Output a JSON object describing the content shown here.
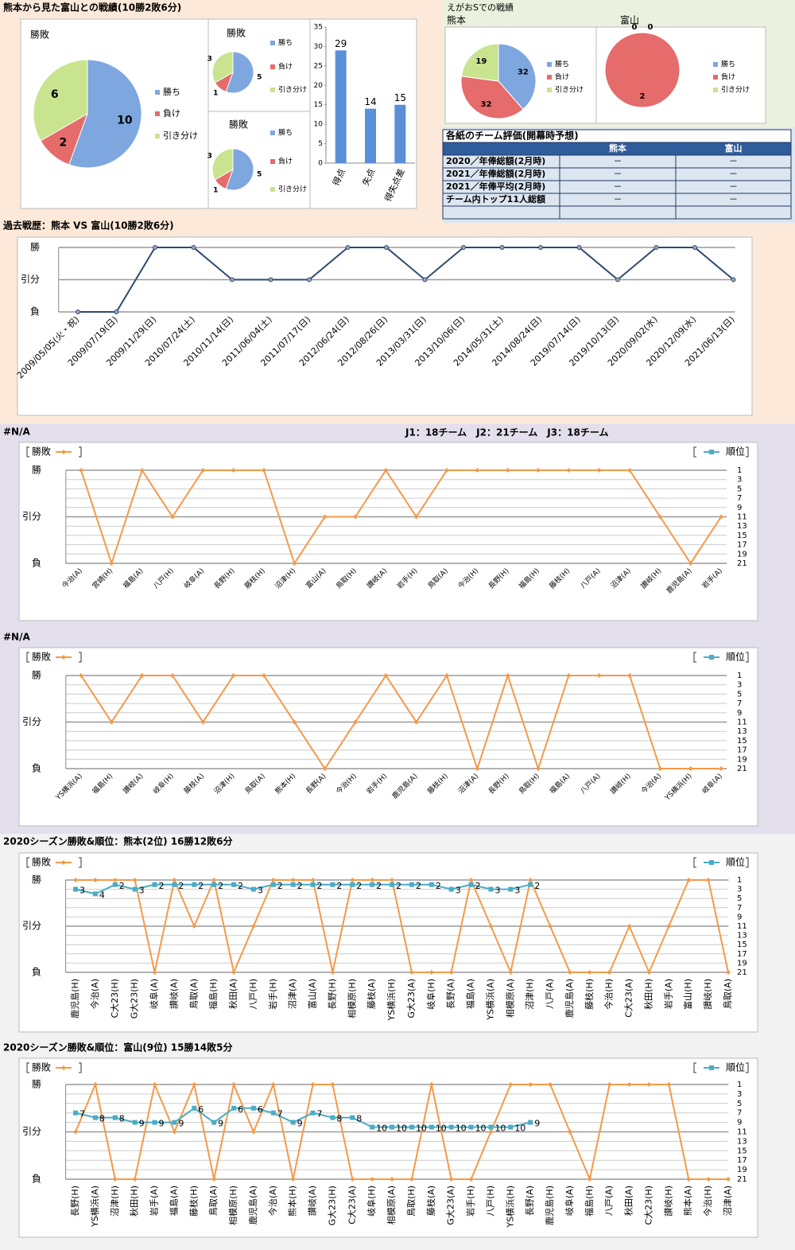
{
  "headings": {
    "top": "熊本から見た富山との戦績(10勝2敗6分)",
    "egao": "えがおSでの戦績",
    "league": "J1：18チーム　J2：21チーム　J3：18チーム"
  },
  "table": {
    "title": "各紙のチーム評価(開幕時予想)",
    "header": [
      "熊本",
      "富山"
    ],
    "rows": [
      [
        "2020／年俸総額(2月時)",
        "－",
        "－"
      ],
      [
        "2021／年俸総額(2月時)",
        "－",
        "－"
      ],
      [
        "2021／年俸平均(2月時)",
        "－",
        "－"
      ],
      [
        "チーム内トップ11人総額",
        "－",
        "－"
      ]
    ]
  },
  "chart_data": [
    {
      "type": "pie",
      "title": "勝敗",
      "categories": [
        "勝ち",
        "負け",
        "引き分け"
      ],
      "values": [
        10,
        2,
        6
      ],
      "colors": [
        "#7ea7e0",
        "#e66b6b",
        "#c9e48f"
      ]
    },
    {
      "type": "pie",
      "title": "勝敗",
      "categories": [
        "勝ち",
        "負け",
        "引き分け"
      ],
      "values": [
        5,
        1,
        3
      ],
      "colors": [
        "#7ea7e0",
        "#e66b6b",
        "#c9e48f"
      ]
    },
    {
      "type": "pie",
      "title": "勝敗",
      "categories": [
        "勝ち",
        "負け",
        "引き分け"
      ],
      "values": [
        5,
        1,
        3
      ],
      "colors": [
        "#7ea7e0",
        "#e66b6b",
        "#c9e48f"
      ]
    },
    {
      "type": "bar",
      "categories": [
        "得点",
        "失点",
        "得失点差"
      ],
      "values": [
        29,
        14,
        15
      ],
      "color": "#5b8fd8",
      "ylim": [
        0,
        35
      ],
      "yticks": [
        0,
        5,
        10,
        15,
        20,
        25,
        30,
        35
      ]
    },
    {
      "type": "pie",
      "title": "熊本",
      "categories": [
        "勝ち",
        "負け",
        "引き分け"
      ],
      "values": [
        32,
        32,
        19
      ],
      "colors": [
        "#7ea7e0",
        "#e66b6b",
        "#c9e48f"
      ]
    },
    {
      "type": "pie",
      "title": "富山",
      "categories": [
        "勝ち",
        "負け",
        "引き分け"
      ],
      "values": [
        0,
        2,
        0
      ],
      "colors": [
        "#7ea7e0",
        "#e66b6b",
        "#c9e48f"
      ]
    },
    {
      "type": "line",
      "title": "過去戦歴：熊本 VS 富山(10勝2敗6分)",
      "categories": [
        "2009/05/05(火・祝)",
        "2009/07/19(日)",
        "2009/11/29(日)",
        "2010/07/24(土)",
        "2010/11/14(日)",
        "2011/06/04(土)",
        "2011/07/17(日)",
        "2012/06/24(日)",
        "2012/08/26(日)",
        "2013/03/31(日)",
        "2013/10/06(日)",
        "2014/05/31(土)",
        "2014/08/24(日)",
        "2019/07/14(日)",
        "2019/10/13(日)",
        "2020/09/02(水)",
        "2020/12/09(水)",
        "2021/06/13(日)"
      ],
      "values": [
        -1,
        -1,
        1,
        1,
        0,
        0,
        0,
        1,
        1,
        0,
        1,
        1,
        1,
        1,
        0,
        1,
        1,
        0
      ],
      "color": "#2e4a6e",
      "ylim": [
        -1,
        1
      ],
      "yticks": [
        {
          "value": 1,
          "label": "勝"
        },
        {
          "value": 0,
          "label": "引分"
        },
        {
          "value": -1,
          "label": "負"
        }
      ]
    },
    {
      "type": "line",
      "title": "#N/A",
      "categories": [
        "今治(A)",
        "宮崎(H)",
        "福島(A)",
        "八戸(H)",
        "岐阜(A)",
        "長野(H)",
        "藤枝(H)",
        "沼津(H)",
        "富山(A)",
        "鳥取(H)",
        "讃岐(A)",
        "岩手(H)",
        "鳥取(A)",
        "今治(H)",
        "長野(H)",
        "福島(H)",
        "藤枝(H)",
        "八戸(A)",
        "沼津(A)",
        "讃岐(H)",
        "鹿児島(A)",
        "岩手(A)"
      ],
      "series": [
        {
          "name": "勝敗",
          "color": "#f39a4a",
          "marker": "diamond",
          "values": [
            1,
            -1,
            1,
            0,
            1,
            1,
            1,
            -1,
            0,
            0,
            1,
            0,
            1,
            1,
            1,
            1,
            1,
            1,
            1,
            0,
            -1,
            0
          ]
        },
        {
          "name": "順位",
          "color": "#4bacc6",
          "marker": "square",
          "axis": "y2",
          "data_labels": true,
          "values": [
            null,
            null,
            null,
            null,
            null,
            null,
            null,
            null,
            null,
            null,
            null,
            null,
            null,
            null,
            null,
            null,
            null,
            null,
            null,
            null,
            null,
            null
          ]
        }
      ],
      "ylim": [
        -1,
        1
      ],
      "yticks": [
        {
          "value": 1,
          "label": "勝"
        },
        {
          "value": 0,
          "label": "引分"
        },
        {
          "value": -1,
          "label": "負"
        }
      ],
      "y2lim": [
        21,
        1
      ],
      "y2ticks": [
        1,
        3,
        5,
        7,
        9,
        11,
        13,
        15,
        17,
        19,
        21
      ]
    },
    {
      "type": "line",
      "title": "#N/A",
      "categories": [
        "YS横浜(A)",
        "福島(H)",
        "讃岐(A)",
        "岐阜(H)",
        "藤枝(A)",
        "沼津(H)",
        "鳥取(A)",
        "熊本(H)",
        "長野(A)",
        "今治(H)",
        "岩手(H)",
        "鹿児島(A)",
        "藤枝(H)",
        "沼津(A)",
        "長野(H)",
        "鳥取(H)",
        "福島(A)",
        "八戸(A)",
        "讃岐(H)",
        "今治(A)",
        "YS横浜(H)",
        "岐阜(A)"
      ],
      "series": [
        {
          "name": "勝敗",
          "color": "#f39a4a",
          "marker": "diamond",
          "values": [
            1,
            0,
            1,
            1,
            0,
            1,
            1,
            0,
            -1,
            0,
            1,
            0,
            1,
            -1,
            1,
            -1,
            1,
            1,
            1,
            -1,
            -1,
            -1
          ]
        },
        {
          "name": "順位",
          "color": "#4bacc6",
          "marker": "square",
          "axis": "y2",
          "data_labels": true,
          "values": [
            null,
            null,
            null,
            null,
            null,
            null,
            null,
            null,
            null,
            null,
            null,
            null,
            null,
            null,
            null,
            null,
            null,
            null,
            null,
            null,
            null,
            null
          ]
        }
      ],
      "ylim": [
        -1,
        1
      ],
      "yticks": [
        {
          "value": 1,
          "label": "勝"
        },
        {
          "value": 0,
          "label": "引分"
        },
        {
          "value": -1,
          "label": "負"
        }
      ],
      "y2lim": [
        21,
        1
      ],
      "y2ticks": [
        1,
        3,
        5,
        7,
        9,
        11,
        13,
        15,
        17,
        19,
        21
      ]
    },
    {
      "type": "line",
      "title": "2020シーズン勝敗&順位：熊本(2位) 16勝12敗6分",
      "categories": [
        "鹿児島(H)",
        "今治(A)",
        "C大23(H)",
        "G大23(H)",
        "岐阜(A)",
        "讃岐(A)",
        "鳥取(A)",
        "福島(H)",
        "秋田(A)",
        "八戸(H)",
        "岩手(H)",
        "沼津(A)",
        "富山(A)",
        "長野(H)",
        "相模原(H)",
        "藤枝(A)",
        "YS横浜(H)",
        "G大23(A)",
        "岐阜(H)",
        "長野(A)",
        "福島(A)",
        "YS横浜(A)",
        "相模原(A)",
        "沼津(H)",
        "八戸(A)",
        "鹿児島(A)",
        "藤枝(H)",
        "今治(H)",
        "C大23(A)",
        "秋田(H)",
        "岩手(A)",
        "富山(H)",
        "讃岐(H)",
        "鳥取(A)"
      ],
      "series": [
        {
          "name": "勝敗",
          "color": "#f39a4a",
          "marker": "diamond",
          "values": [
            1,
            1,
            1,
            1,
            -1,
            1,
            0,
            1,
            -1,
            0,
            1,
            1,
            1,
            -1,
            1,
            1,
            1,
            -1,
            -1,
            -1,
            1,
            0,
            -1,
            1,
            0,
            -1,
            -1,
            -1,
            0,
            -1,
            0,
            1,
            1,
            -1
          ]
        },
        {
          "name": "順位",
          "color": "#4bacc6",
          "marker": "square",
          "axis": "y2",
          "data_labels": true,
          "values": [
            3,
            4,
            2,
            3,
            2,
            2,
            2,
            2,
            2,
            3,
            2,
            2,
            2,
            2,
            2,
            2,
            2,
            2,
            2,
            3,
            2,
            3,
            3,
            2,
            null,
            null,
            null,
            null,
            null,
            null,
            null,
            null,
            null,
            null
          ]
        }
      ],
      "ylim": [
        -1,
        1
      ],
      "yticks": [
        {
          "value": 1,
          "label": "勝"
        },
        {
          "value": 0,
          "label": "引分"
        },
        {
          "value": -1,
          "label": "負"
        }
      ],
      "y2lim": [
        21,
        1
      ],
      "y2ticks": [
        1,
        3,
        5,
        7,
        9,
        11,
        13,
        15,
        17,
        19,
        21
      ]
    },
    {
      "type": "line",
      "title": "2020シーズン勝敗&順位：富山(9位) 15勝14敗5分",
      "categories": [
        "長野(H)",
        "YS横浜(A)",
        "沼津(H)",
        "秋田(H)",
        "岩手(A)",
        "福島(A)",
        "藤枝(H)",
        "鳥取(A)",
        "相模原(H)",
        "鹿児島(A)",
        "今治(A)",
        "熊本(H)",
        "讃岐(A)",
        "G大23(H)",
        "C大23(A)",
        "岐阜(H)",
        "相模原(A)",
        "鳥取(H)",
        "藤枝(A)",
        "G大23(A)",
        "岩手(H)",
        "八戸(H)",
        "YS横浜(H)",
        "長野(A)",
        "鹿児島(H)",
        "岐阜(A)",
        "福島(H)",
        "八戸(A)",
        "秋田(A)",
        "C大23(H)",
        "讃岐(H)",
        "熊本(A)",
        "今治(H)",
        "沼津(A)"
      ],
      "series": [
        {
          "name": "勝敗",
          "color": "#f39a4a",
          "marker": "diamond",
          "values": [
            0,
            1,
            -1,
            -1,
            1,
            0,
            1,
            -1,
            1,
            0,
            1,
            -1,
            1,
            1,
            -1,
            -1,
            -1,
            -1,
            1,
            -1,
            -1,
            0,
            1,
            1,
            1,
            0,
            -1,
            1,
            1,
            1,
            1,
            -1,
            -1,
            -1
          ]
        },
        {
          "name": "順位",
          "color": "#4bacc6",
          "marker": "square",
          "axis": "y2",
          "data_labels": true,
          "values": [
            7,
            8,
            8,
            9,
            9,
            9,
            6,
            9,
            6,
            6,
            7,
            9,
            7,
            8,
            8,
            10,
            10,
            10,
            10,
            10,
            10,
            10,
            10,
            9,
            null,
            null,
            null,
            null,
            null,
            null,
            null,
            null,
            null,
            null
          ]
        }
      ],
      "ylim": [
        -1,
        1
      ],
      "yticks": [
        {
          "value": 1,
          "label": "勝"
        },
        {
          "value": 0,
          "label": "引分"
        },
        {
          "value": -1,
          "label": "負"
        }
      ],
      "y2lim": [
        21,
        1
      ],
      "y2ticks": [
        1,
        3,
        5,
        7,
        9,
        11,
        13,
        15,
        17,
        19,
        21
      ]
    }
  ]
}
